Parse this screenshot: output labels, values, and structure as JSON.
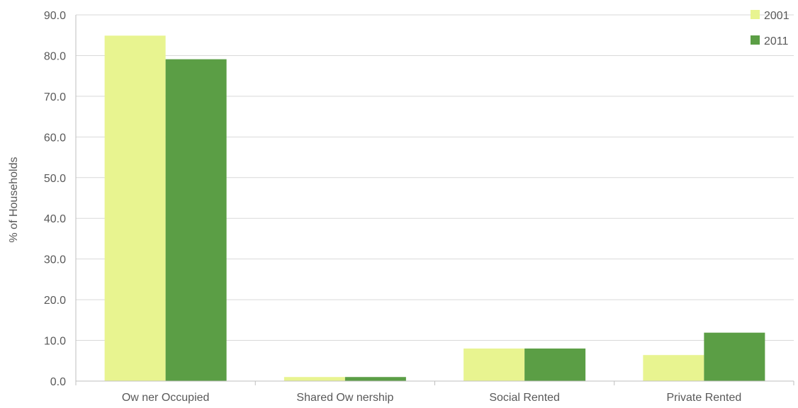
{
  "chart_data": {
    "type": "bar",
    "title": "",
    "xlabel": "",
    "ylabel": "% of Households",
    "ylim": [
      0,
      90
    ],
    "yticks": [
      "0.0",
      "10.0",
      "20.0",
      "30.0",
      "40.0",
      "50.0",
      "60.0",
      "70.0",
      "80.0",
      "90.0"
    ],
    "grid": true,
    "legend_position": "top-right",
    "categories": [
      "Ow ner Occupied",
      "Shared Ow nership",
      "Social Rented",
      "Private Rented"
    ],
    "series": [
      {
        "name": "2001",
        "color": "#e8f490",
        "values": [
          84.9,
          1.0,
          8.0,
          6.4
        ]
      },
      {
        "name": "2011",
        "color": "#5b9e45",
        "values": [
          79.1,
          1.0,
          8.0,
          11.9
        ]
      }
    ]
  }
}
